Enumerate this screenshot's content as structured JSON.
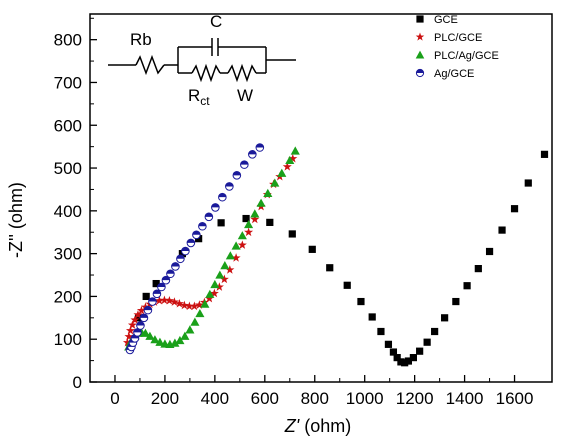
{
  "chart_data": {
    "type": "scatter",
    "xlabel_main": "Z'",
    "xlabel_unit": " (ohm)",
    "ylabel": "-Z'' (ohm)",
    "xlim": [
      -100,
      1750
    ],
    "ylim": [
      0,
      860
    ],
    "x_ticks": [
      0,
      200,
      400,
      600,
      800,
      1000,
      1200,
      1400,
      1600
    ],
    "y_ticks": [
      0,
      100,
      200,
      300,
      400,
      500,
      600,
      700,
      800
    ],
    "legend_position": "top-right",
    "circuit": {
      "rb": "Rb",
      "c": "C",
      "rct_main": "R",
      "rct_sub": "ct",
      "w": "W"
    },
    "series": [
      {
        "name": "GCE",
        "marker": "square",
        "color": "#000000",
        "x": [
          60,
          95,
          125,
          165,
          270,
          335,
          425,
          525,
          620,
          710,
          790,
          860,
          930,
          985,
          1030,
          1065,
          1095,
          1115,
          1130,
          1145,
          1160,
          1175,
          1195,
          1220,
          1250,
          1280,
          1320,
          1365,
          1410,
          1455,
          1500,
          1550,
          1600,
          1655,
          1720
        ],
        "y": [
          85,
          150,
          200,
          230,
          300,
          335,
          372,
          382,
          373,
          346,
          310,
          267,
          226,
          188,
          152,
          118,
          88,
          70,
          57,
          47,
          45,
          49,
          57,
          72,
          93,
          118,
          150,
          188,
          225,
          265,
          305,
          355,
          405,
          465,
          532
        ]
      },
      {
        "name": "PLC/GCE",
        "marker": "star",
        "color": "#cc1111",
        "x": [
          50,
          56,
          62,
          70,
          80,
          92,
          106,
          122,
          140,
          158,
          178,
          198,
          218,
          238,
          258,
          278,
          298,
          318,
          338,
          358,
          378,
          398,
          418,
          438,
          460,
          485,
          510,
          535,
          560,
          585,
          610,
          635,
          660,
          690,
          712
        ],
        "y": [
          92,
          106,
          120,
          133,
          145,
          157,
          167,
          175,
          182,
          187,
          190,
          191,
          190,
          187,
          183,
          179,
          177,
          177,
          180,
          186,
          195,
          207,
          222,
          240,
          262,
          290,
          320,
          350,
          380,
          410,
          438,
          462,
          480,
          503,
          522
        ]
      },
      {
        "name": "PLC/Ag/GCE",
        "marker": "triangle",
        "color": "#1aa01a",
        "x": [
          55,
          62,
          70,
          80,
          92,
          106,
          122,
          140,
          160,
          180,
          200,
          220,
          240,
          260,
          280,
          300,
          320,
          340,
          360,
          380,
          400,
          420,
          440,
          462,
          485,
          510,
          535,
          560,
          585,
          612,
          640,
          668,
          700,
          722
        ],
        "y": [
          82,
          92,
          100,
          108,
          114,
          116,
          114,
          107,
          99,
          93,
          89,
          88,
          91,
          97,
          107,
          122,
          140,
          160,
          182,
          205,
          228,
          250,
          272,
          295,
          318,
          342,
          368,
          393,
          418,
          441,
          465,
          488,
          518,
          540
        ]
      },
      {
        "name": "Ag/GCE",
        "marker": "halfcircle",
        "color": "#1a1a9a",
        "x": [
          60,
          66,
          72,
          80,
          90,
          102,
          116,
          132,
          150,
          168,
          186,
          204,
          222,
          242,
          262,
          282,
          304,
          326,
          350,
          376,
          402,
          430,
          458,
          488,
          518,
          550,
          580
        ],
        "y": [
          75,
          82,
          92,
          102,
          116,
          132,
          150,
          168,
          188,
          206,
          222,
          238,
          253,
          270,
          288,
          306,
          325,
          344,
          364,
          386,
          408,
          432,
          457,
          483,
          508,
          532,
          548
        ]
      }
    ]
  }
}
